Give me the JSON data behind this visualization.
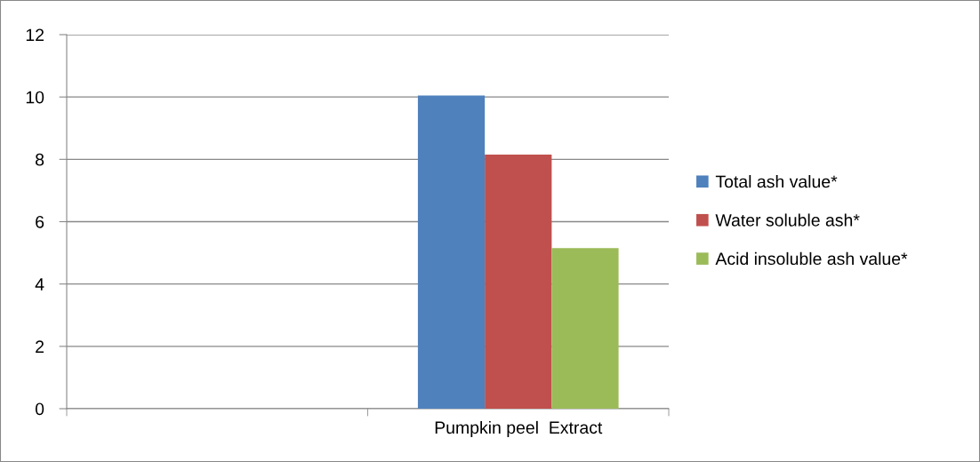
{
  "chart_data": {
    "type": "bar",
    "categories": [
      null,
      "Pumpkin peel  Extract"
    ],
    "series": [
      {
        "name": "Total ash value*",
        "color": "#4f81bd",
        "values": [
          null,
          10.05
        ]
      },
      {
        "name": "Water soluble ash*",
        "color": "#c0504d",
        "values": [
          null,
          8.15
        ]
      },
      {
        "name": "Acid insoluble ash value*",
        "color": "#9bbb59",
        "values": [
          null,
          5.15
        ]
      }
    ],
    "ylim": [
      0,
      12
    ],
    "yticks": [
      0,
      2,
      4,
      6,
      8,
      10,
      12
    ],
    "grid": "y",
    "legend": "right"
  }
}
